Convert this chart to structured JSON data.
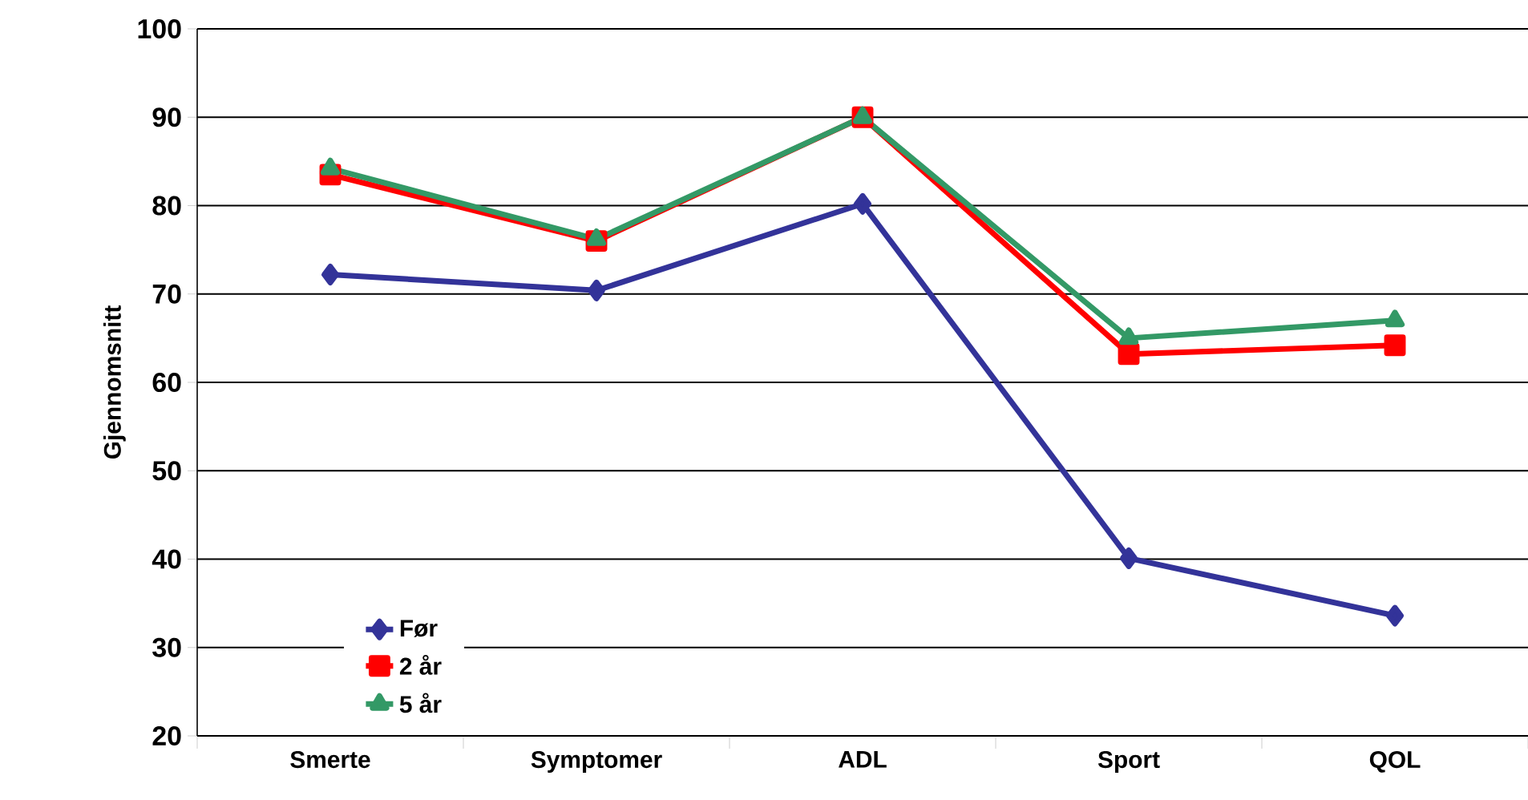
{
  "chart_data": {
    "type": "line",
    "ylabel": "Gjennomsnitt",
    "categories": [
      "Smerte",
      "Symptomer",
      "ADL",
      "Sport",
      "QOL"
    ],
    "series": [
      {
        "name": "Før",
        "color": "#333399",
        "marker": "diamond",
        "values": [
          72.2,
          70.4,
          80.2,
          40.1,
          33.6
        ]
      },
      {
        "name": "2 år",
        "color": "#ff0000",
        "marker": "square",
        "values": [
          83.5,
          76.0,
          90.0,
          63.2,
          64.2
        ]
      },
      {
        "name": "5 år",
        "color": "#339966",
        "marker": "triangle",
        "values": [
          84.2,
          76.2,
          90.0,
          65.0,
          67.0
        ]
      }
    ],
    "ylim": [
      20,
      100
    ],
    "yticks": [
      20,
      30,
      40,
      50,
      60,
      70,
      80,
      90,
      100
    ],
    "grid": "y",
    "legend": "bottom left"
  }
}
